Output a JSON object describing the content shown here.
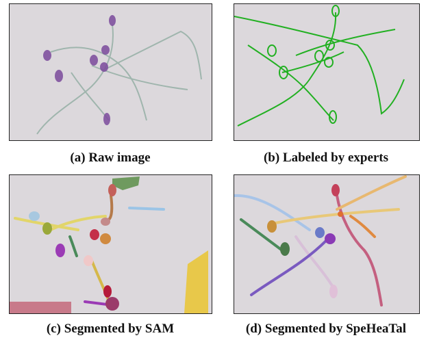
{
  "panels": [
    {
      "caption": "(a) Raw image"
    },
    {
      "caption": "(b) Labeled by experts"
    },
    {
      "caption": "(c) Segmented by SAM"
    },
    {
      "caption": "(d) Segmented by SpeHeaTal"
    }
  ]
}
